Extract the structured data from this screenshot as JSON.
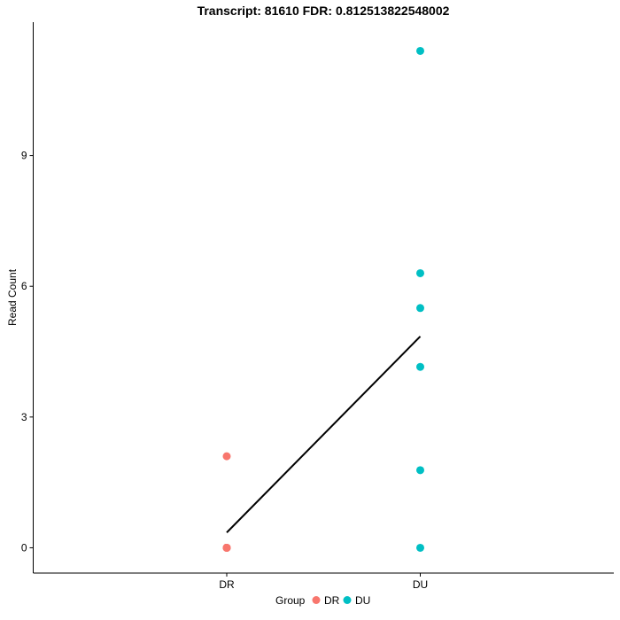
{
  "chart_data": {
    "type": "scatter",
    "title": "Transcript: 81610  FDR:  0.812513822548002",
    "xlabel": "",
    "ylabel": "Read Count",
    "categories": [
      "DR",
      "DU"
    ],
    "yticks": [
      0,
      3,
      6,
      9
    ],
    "ylim": [
      -0.58,
      12.06
    ],
    "grid": false,
    "series": [
      {
        "name": "DR",
        "color": "#F8766D",
        "category": "DR",
        "values": [
          2.1,
          0,
          0,
          0,
          0,
          0
        ]
      },
      {
        "name": "DU",
        "color": "#00BFC4",
        "category": "DU",
        "values": [
          11.4,
          6.3,
          5.5,
          4.15,
          1.78,
          0
        ]
      }
    ],
    "trend_line": {
      "color": "#000000",
      "points": [
        [
          "DR",
          0.35
        ],
        [
          "DU",
          4.85
        ]
      ]
    },
    "legend": {
      "title": "Group",
      "position": "bottom",
      "entries": [
        "DR",
        "DU"
      ]
    }
  }
}
